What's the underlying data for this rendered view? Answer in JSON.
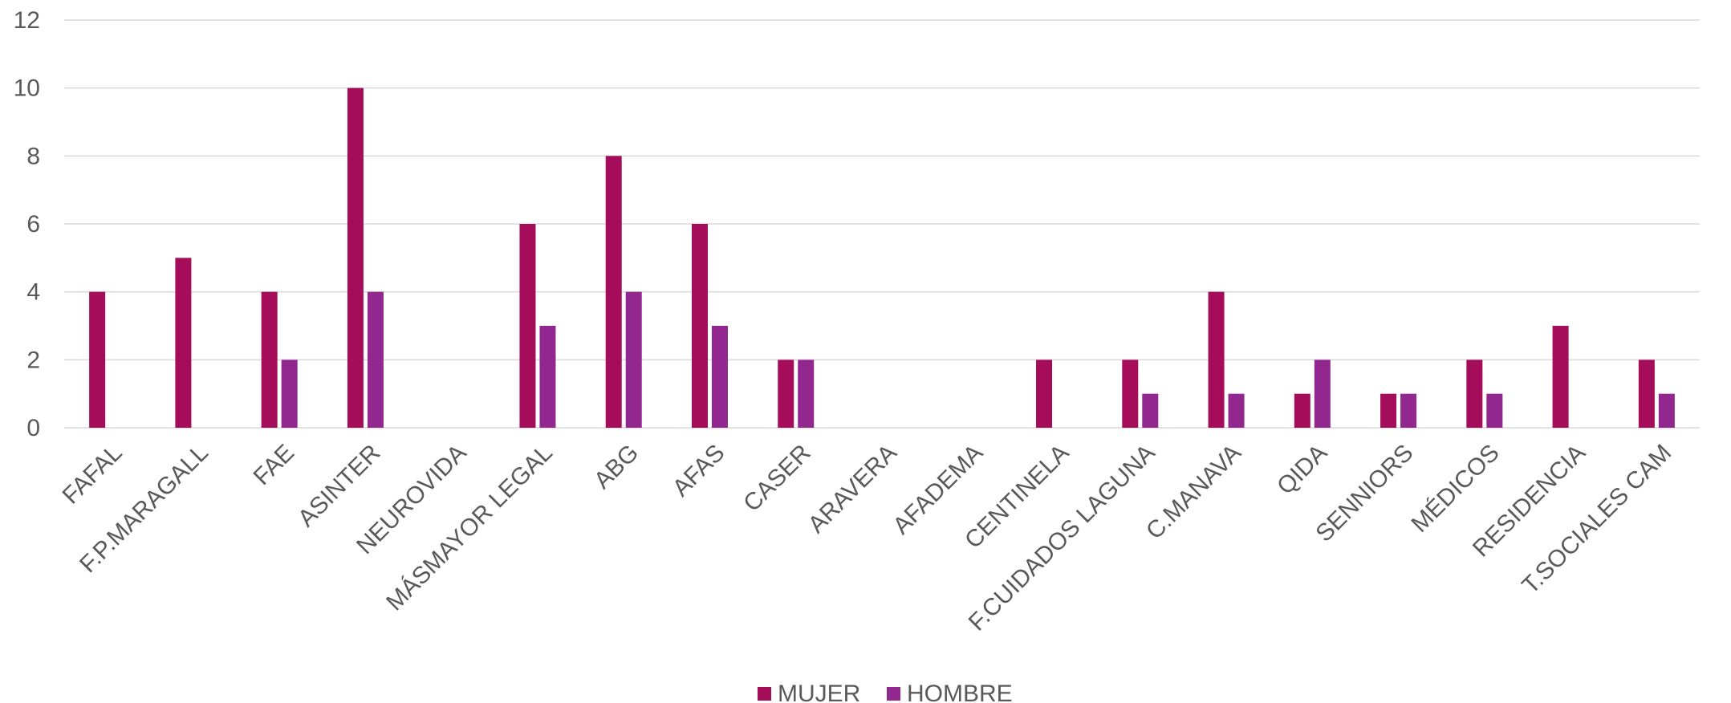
{
  "chart_data": {
    "type": "bar",
    "title": "",
    "xlabel": "",
    "ylabel": "",
    "ylim": [
      0,
      12
    ],
    "yticks": [
      0,
      2,
      4,
      6,
      8,
      10,
      12
    ],
    "grid": true,
    "legend_position": "bottom",
    "categories": [
      "FAFAL",
      "F.P.MARAGALL",
      "FAE",
      "ASINTER",
      "NEUROVIDA",
      "MÁSMAYOR LEGAL",
      "ABG",
      "AFAS",
      "CASER",
      "ARAVERA",
      "AFADEMA",
      "CENTINELA",
      "F.CUIDADOS LAGUNA",
      "C.MANAVA",
      "QIDA",
      "SENNIORS",
      "MÉDICOS",
      "RESIDENCIA",
      "T.SOCIALES CAM"
    ],
    "series": [
      {
        "name": "MUJER",
        "color": "#a50c5a",
        "values": [
          4,
          5,
          4,
          10,
          0,
          6,
          8,
          6,
          2,
          0,
          0,
          2,
          2,
          4,
          1,
          1,
          2,
          3,
          2
        ]
      },
      {
        "name": "HOMBRE",
        "color": "#922790",
        "values": [
          0,
          0,
          2,
          4,
          0,
          3,
          4,
          3,
          2,
          0,
          0,
          0,
          1,
          1,
          2,
          1,
          1,
          0,
          1
        ]
      }
    ]
  }
}
